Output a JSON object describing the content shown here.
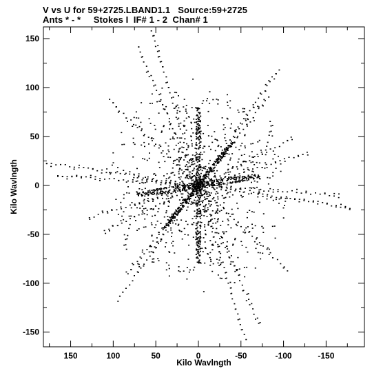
{
  "header": {
    "line1": "V vs U for 59+2725.LBAND1.1   Source:59+2725",
    "line2": "Ants * - *     Stokes I  IF# 1 - 2  Chan# 1"
  },
  "chart_data": {
    "type": "scatter",
    "xlabel": "Kilo Wavlngth",
    "ylabel": "Kilo Wavlngth",
    "xlim": [
      182,
      -195
    ],
    "ylim": [
      -165,
      162
    ],
    "x_ticks": [
      150,
      100,
      50,
      0,
      -50,
      -100,
      -150
    ],
    "y_ticks": [
      150,
      100,
      50,
      0,
      -50,
      -100,
      -150
    ],
    "x_tick_labels": [
      "150",
      "100",
      "50",
      "0",
      "-50",
      "-100",
      "-150"
    ],
    "y_tick_labels": [
      "150",
      "100",
      "50",
      "0",
      "-50",
      "-100",
      "-150"
    ],
    "grid": false,
    "marker": "dot",
    "symmetry": "point-symmetric about origin",
    "arm_endpoints": [
      {
        "u": 55,
        "v": 158
      },
      {
        "u": 71,
        "v": 141
      },
      {
        "u": -95,
        "v": 118
      },
      {
        "u": -83,
        "v": 90
      },
      {
        "u": 105,
        "v": 87
      },
      {
        "u": -110,
        "v": 47
      },
      {
        "u": 178,
        "v": 23
      },
      {
        "u": -128,
        "v": 33
      },
      {
        "u": 165,
        "v": 10
      },
      {
        "u": -55,
        "v": -158
      },
      {
        "u": -71,
        "v": -141
      },
      {
        "u": 95,
        "v": -118
      },
      {
        "u": 83,
        "v": -90
      },
      {
        "u": -105,
        "v": -87
      },
      {
        "u": 110,
        "v": -47
      },
      {
        "u": -178,
        "v": -23
      },
      {
        "u": 128,
        "v": -33
      },
      {
        "u": -165,
        "v": -10
      }
    ]
  }
}
